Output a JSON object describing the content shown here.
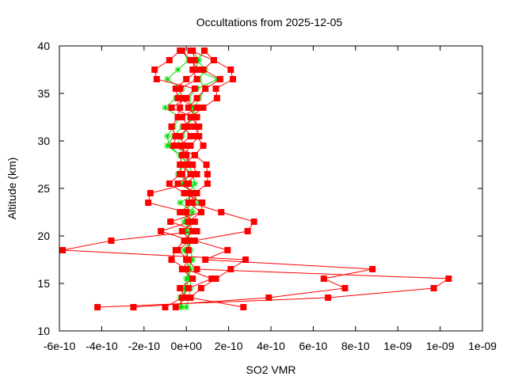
{
  "chart_data": {
    "type": "line",
    "title": "Occultations from 2025-12-05",
    "xlabel": "SO2 VMR",
    "ylabel": "Altitude (km)",
    "xlim": [
      -6e-10,
      1.4e-09
    ],
    "ylim": [
      10,
      40
    ],
    "grid": false,
    "legend": "none",
    "x_tick_values": [
      -6e-10,
      -4e-10,
      -2e-10,
      0,
      2e-10,
      4e-10,
      6e-10,
      8e-10,
      1e-09,
      1.2e-09,
      1.4e-09
    ],
    "x_tick_labels": [
      "-6e-10",
      "-4e-10",
      "-2e-10",
      "0e+00",
      "2e-10",
      "4e-10",
      "6e-10",
      "8e-10",
      "1e-09",
      "1e-09",
      "1e-09"
    ],
    "y_tick_values": [
      10,
      15,
      20,
      25,
      30,
      35,
      40
    ],
    "y_tick_labels": [
      "10",
      "15",
      "20",
      "25",
      "30",
      "35",
      "40"
    ],
    "altitudes": [
      12.5,
      13.5,
      14.5,
      15.5,
      16.5,
      17.5,
      18.5,
      19.5,
      20.5,
      21.5,
      22.5,
      23.5,
      24.5,
      25.5,
      26.5,
      27.5,
      28.5,
      29.5,
      30.5,
      31.5,
      32.5,
      33.5,
      34.5,
      35.5,
      36.5,
      37.5,
      38.5,
      39.5
    ],
    "series": [
      {
        "color": "#00dd00",
        "marker": "star",
        "values": [
          -3e-11,
          -2e-11,
          0.0,
          1e-11,
          0.0,
          1e-11,
          -1e-11,
          2e-11,
          0.0,
          1e-11,
          3e-11,
          -3e-11,
          5e-11,
          2e-11,
          -4e-11,
          -2e-11,
          -3e-11,
          -8e-11,
          -9e-11,
          -6e-11,
          -3e-11,
          -1e-10,
          -5e-11,
          -2e-11,
          -9e-11,
          -4e-11,
          1e-11,
          -2e-11
        ]
      },
      {
        "color": "#00dd00",
        "marker": "star",
        "values": [
          0.0,
          1e-11,
          2e-11,
          2e-11,
          1e-11,
          3e-11,
          2e-11,
          0.0,
          2e-11,
          -1e-11,
          1e-11,
          6e-11,
          3e-11,
          -2e-11,
          2e-11,
          -1e-11,
          0.0,
          -5e-11,
          -2e-11,
          1e-11,
          2e-11,
          4e-11,
          6e-11,
          9e-11,
          6e-11,
          9e-11,
          5e-11,
          9e-11
        ]
      },
      {
        "color": "#00dd00",
        "marker": "star",
        "values": [
          -2e-11,
          -3e-11,
          -1e-11,
          0.0,
          2e-11,
          0.0,
          1e-11,
          1e-11,
          -1e-11,
          2e-11,
          0.0,
          2e-11,
          1e-11,
          4e-11,
          3e-11,
          1e-11,
          -3e-11,
          -9e-11,
          -6e-11,
          -2e-11,
          5e-11,
          3e-11,
          1e-11,
          5e-11,
          1.5e-10,
          4e-11,
          6e-11,
          3e-11
        ]
      },
      {
        "color": "#ff0000",
        "marker": "square",
        "values": [
          -4.2e-10,
          6.7e-10,
          1.17e-09,
          1.24e-09,
          5e-11,
          0.0,
          1e-11,
          2e-11,
          -1.2e-10,
          2e-11,
          0.0,
          -1.8e-10,
          -1.7e-10,
          1e-11,
          -2e-11,
          1e-11,
          0.0,
          -3e-11,
          2e-11,
          -1e-11,
          3e-11,
          -7e-11,
          0.0,
          4e-11,
          -1.4e-10,
          -1.5e-10,
          -8e-11,
          -3e-11
        ]
      },
      {
        "color": "#ff0000",
        "marker": "square",
        "values": [
          -2.5e-10,
          3.9e-10,
          7.5e-10,
          6.5e-10,
          8.8e-10,
          9e-11,
          1.95e-10,
          4e-11,
          2.9e-10,
          3.2e-10,
          1.65e-10,
          2e-11,
          4e-11,
          1e-10,
          1e-10,
          9.5e-11,
          4e-11,
          8e-11,
          5e-11,
          6e-11,
          2e-11,
          8e-11,
          1.45e-10,
          1.4e-10,
          2.2e-10,
          2.1e-10,
          1.3e-10,
          8.5e-11
        ]
      },
      {
        "color": "#ff0000",
        "marker": "square",
        "values": [
          2.7e-10,
          2e-11,
          7e-11,
          1.4e-10,
          2.1e-10,
          2.8e-10,
          -5.85e-10,
          -3.55e-10,
          5e-11,
          -7.5e-11,
          7e-11,
          7.5e-11,
          -1e-11,
          -8e-11,
          -3e-11,
          -2e-11,
          4e-11,
          -6e-11,
          -5e-11,
          -7e-11,
          -4e-11,
          -3e-11,
          -2e-11,
          -3e-11,
          5e-11,
          3e-11,
          4e-11,
          3e-11
        ]
      },
      {
        "color": "#ff0000",
        "marker": "square",
        "values": [
          -1e-10,
          -2e-11,
          1e-11,
          1.2e-10,
          0.0,
          -7e-11,
          -5e-11,
          -1e-11,
          3e-11,
          1e-11,
          7e-11,
          1e-11,
          2e-11,
          0.0,
          5e-11,
          3e-11,
          -1e-11,
          2e-11,
          6e-11,
          4e-11,
          5e-11,
          1e-11,
          5e-11,
          9e-11,
          1.6e-10,
          8e-11,
          1.3e-10,
          2e-11
        ]
      },
      {
        "color": "#ff0000",
        "marker": "square",
        "values": [
          -5e-11,
          0.0,
          -3e-11,
          3e-11,
          -2e-11,
          1e-11,
          -4e-11,
          2e-11,
          -2e-11,
          4e-11,
          -3e-11,
          3e-11,
          5e-11,
          -4e-11,
          2e-11,
          -3e-11,
          -2e-11,
          -1e-11,
          -3e-11,
          1e-11,
          -2e-11,
          5e-11,
          -4e-11,
          -5e-11,
          0.0,
          6e-11,
          2e-11,
          -2e-11
        ]
      }
    ]
  }
}
